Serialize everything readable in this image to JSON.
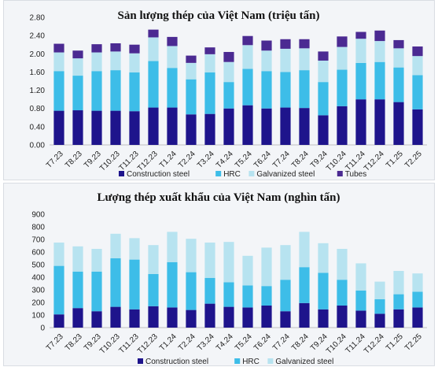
{
  "chart_data": [
    {
      "type": "bar",
      "stacked": true,
      "title": "Sản lượng thép của Việt Nam (triệu tấn)",
      "categories": [
        "T7.23",
        "T8.23",
        "T9.23",
        "T10.23",
        "T11.23",
        "T12.23",
        "T1.24",
        "T2.24",
        "T3.24",
        "T4.24",
        "T5.24",
        "T6.24",
        "T7.24",
        "T8.24",
        "T9.24",
        "T10.24",
        "T11.24",
        "T12.24",
        "T1.25",
        "T2.25"
      ],
      "series": [
        {
          "name": "Construction steel",
          "color": "#1e148c",
          "values": [
            0.75,
            0.76,
            0.75,
            0.75,
            0.74,
            0.82,
            0.82,
            0.67,
            0.68,
            0.8,
            0.87,
            0.8,
            0.82,
            0.81,
            0.65,
            0.85,
            1.0,
            1.0,
            0.94,
            0.78
          ]
        },
        {
          "name": "HRC",
          "color": "#3dbde8",
          "values": [
            0.87,
            0.76,
            0.87,
            0.89,
            0.85,
            1.02,
            0.87,
            0.77,
            0.91,
            0.58,
            0.8,
            0.82,
            0.78,
            0.83,
            0.73,
            0.8,
            0.8,
            0.82,
            0.76,
            0.75
          ]
        },
        {
          "name": "Galvanized steel",
          "color": "#b7e3f0",
          "values": [
            0.41,
            0.38,
            0.41,
            0.41,
            0.42,
            0.52,
            0.48,
            0.36,
            0.4,
            0.44,
            0.52,
            0.45,
            0.51,
            0.48,
            0.47,
            0.5,
            0.53,
            0.46,
            0.42,
            0.42
          ]
        },
        {
          "name": "Tubes",
          "color": "#4b2a92",
          "values": [
            0.19,
            0.17,
            0.18,
            0.18,
            0.19,
            0.17,
            0.2,
            0.16,
            0.15,
            0.22,
            0.2,
            0.22,
            0.21,
            0.2,
            0.2,
            0.23,
            0.15,
            0.23,
            0.18,
            0.21
          ]
        }
      ],
      "ylim": [
        0,
        2.8
      ],
      "yticks": [
        "0.00",
        "0.40",
        "0.80",
        "1.20",
        "1.60",
        "2.00",
        "2.40",
        "2.80"
      ],
      "legend": "bottom"
    },
    {
      "type": "bar",
      "stacked": true,
      "title": "Lượng thép xuất khẩu của Việt Nam (nghìn tấn)",
      "categories": [
        "T7.23",
        "T8.23",
        "T9.23",
        "T10.23",
        "T11.23",
        "T12.23",
        "T1.24",
        "T2.24",
        "T3.24",
        "T4.24",
        "T5.24",
        "T6.24",
        "T7.24",
        "T8.24",
        "T9.24",
        "T10.24",
        "T11.24",
        "T12.24",
        "T1.25",
        "T2.25"
      ],
      "series": [
        {
          "name": "Construction steel",
          "color": "#1e148c",
          "values": [
            105,
            155,
            130,
            165,
            145,
            170,
            160,
            140,
            190,
            165,
            160,
            175,
            130,
            195,
            145,
            175,
            135,
            110,
            145,
            160
          ]
        },
        {
          "name": "HRC",
          "color": "#3dbde8",
          "values": [
            385,
            290,
            315,
            385,
            395,
            255,
            360,
            300,
            205,
            195,
            175,
            155,
            250,
            285,
            290,
            205,
            160,
            115,
            120,
            125
          ]
        },
        {
          "name": "Galvanized steel",
          "color": "#b7e3f0",
          "values": [
            185,
            200,
            180,
            195,
            170,
            230,
            240,
            265,
            280,
            320,
            235,
            305,
            275,
            280,
            235,
            245,
            215,
            140,
            185,
            145
          ]
        }
      ],
      "ylim": [
        0,
        900
      ],
      "yticks": [
        "0",
        "100",
        "200",
        "300",
        "400",
        "500",
        "600",
        "700",
        "800",
        "900"
      ],
      "legend": "bottom"
    }
  ]
}
